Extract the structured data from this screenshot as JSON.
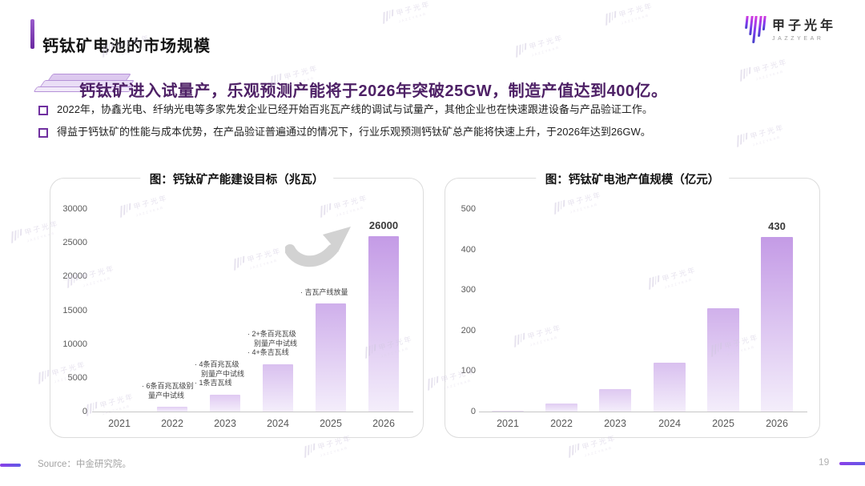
{
  "header": {
    "title": "钙钛矿电池的市场规模",
    "subtitle": "钙钛矿进入试量产，乐观预测产能将于2026年突破25GW，制造产值达到400亿。",
    "logo": {
      "name": "甲子光年",
      "subtext": "JAZZYEAR"
    }
  },
  "bullets": [
    "2022年，协鑫光电、纤纳光电等多家先发企业已经开始百兆瓦产线的调试与试量产，其他企业也在快速跟进设备与产品验证工作。",
    "得益于钙钛矿的性能与成本优势，在产品验证普遍通过的情况下，行业乐观预测钙钛矿总产能将快速上升，于2026年达到26GW。"
  ],
  "watermark": {
    "text": "甲子光年",
    "subtext": "JAZZYEAR"
  },
  "footer": {
    "source": "Source：中金研究院。",
    "page_number": "19"
  },
  "colors": {
    "accent_purple": "#7030a0",
    "subtitle_purple": "#4e2166",
    "bar_gradient_top": "#bf93e4",
    "bar_gradient_bottom": "#f4eefb",
    "axis_label_gray": "#595959",
    "arrow_gray": "#d2d2d2"
  },
  "chart_data": [
    {
      "type": "bar",
      "title": "图：钙钛矿产能建设目标（兆瓦）",
      "ylabel": "兆瓦",
      "categories": [
        "2021",
        "2022",
        "2023",
        "2024",
        "2025",
        "2026"
      ],
      "values": [
        0,
        700,
        2500,
        7000,
        16000,
        26000
      ],
      "ylim": [
        0,
        30000
      ],
      "yticks": [
        0,
        5000,
        10000,
        15000,
        20000,
        25000,
        30000
      ],
      "grid": false,
      "legend": false,
      "value_labels": {
        "2026": "26000"
      },
      "annotations": [
        {
          "category": "2022",
          "lines": [
            "· 6条百兆瓦级别",
            "量产中试线"
          ]
        },
        {
          "category": "2023",
          "lines": [
            "· 4条百兆瓦级",
            "别量产中试线",
            "· 1条吉瓦线"
          ]
        },
        {
          "category": "2024",
          "lines": [
            "· 2+条百兆瓦级",
            "别量产中试线",
            "· 4+条吉瓦线"
          ]
        },
        {
          "category": "2025",
          "lines": [
            "· 吉瓦产线放量"
          ]
        }
      ]
    },
    {
      "type": "bar",
      "title": "图：钙钛矿电池产值规模（亿元）",
      "ylabel": "亿元",
      "categories": [
        "2021",
        "2022",
        "2023",
        "2024",
        "2025",
        "2026"
      ],
      "values": [
        2,
        20,
        55,
        120,
        255,
        430
      ],
      "ylim": [
        0,
        500
      ],
      "yticks": [
        0,
        100,
        200,
        300,
        400,
        500
      ],
      "grid": false,
      "legend": false,
      "value_labels": {
        "2026": "430"
      },
      "annotations": []
    }
  ]
}
